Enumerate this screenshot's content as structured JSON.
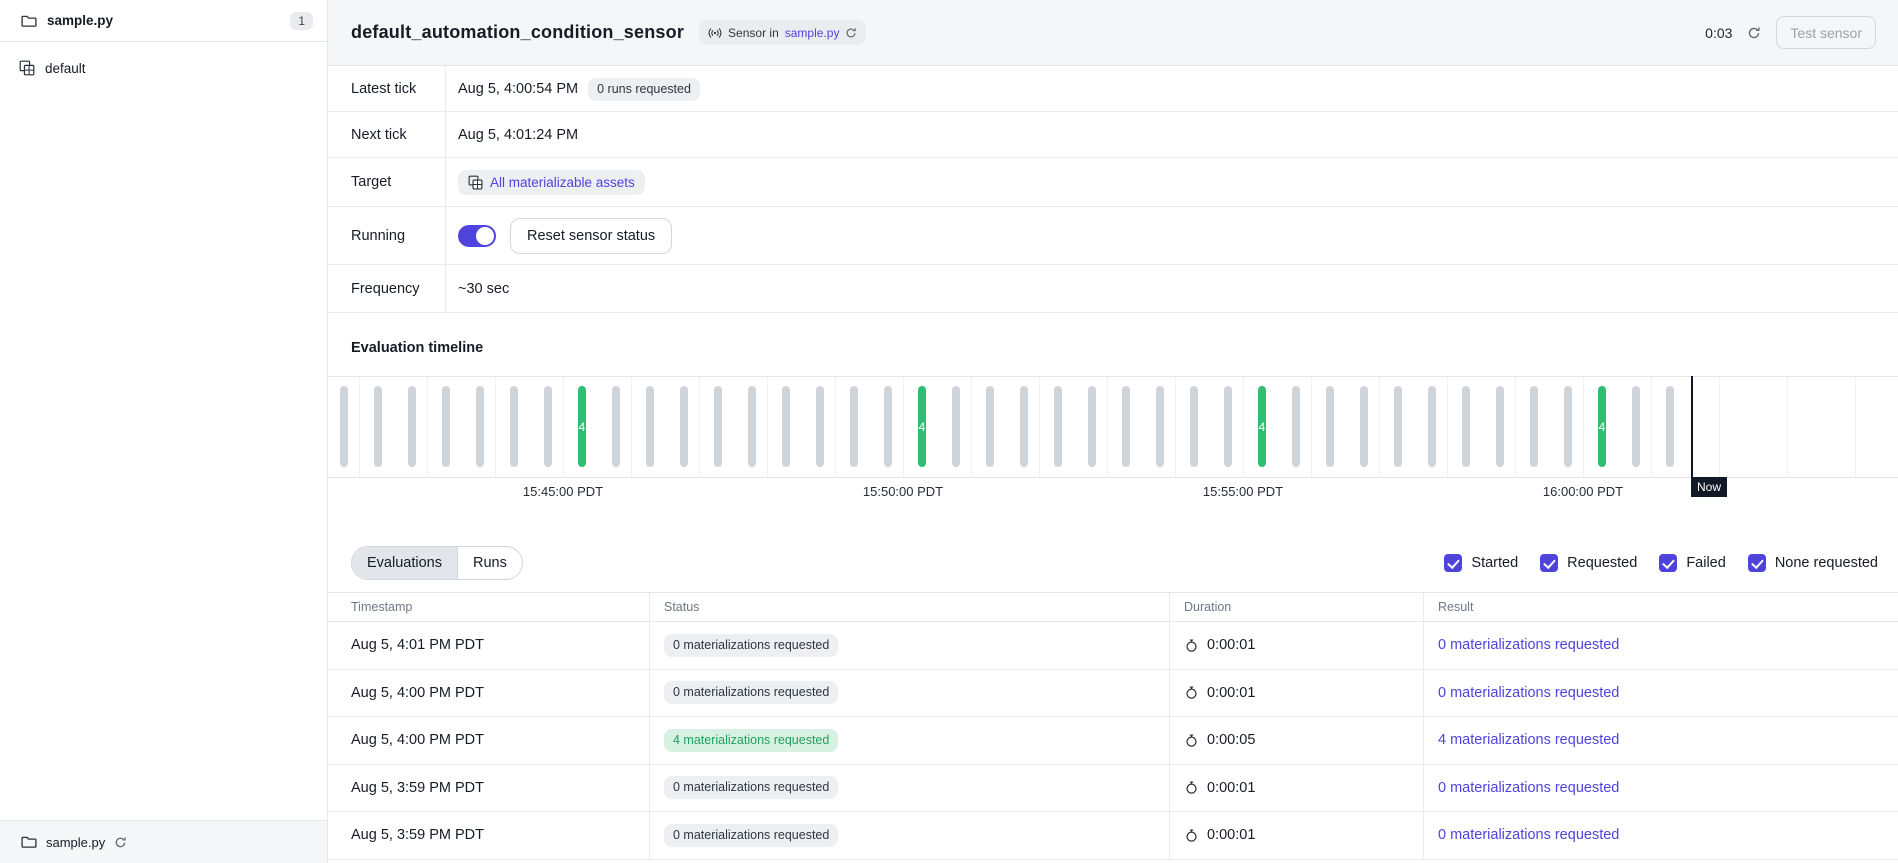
{
  "colors": {
    "accent": "#4F43DD",
    "green_bar": "#2FBE71",
    "green_badge_bg": "#D7F2E2",
    "green_badge_text": "#1FA15D",
    "header_bg": "#F5F6F8"
  },
  "sidebar": {
    "top_item": {
      "label": "sample.py",
      "count": "1"
    },
    "group_item": {
      "label": "default"
    },
    "footer": {
      "label": "sample.py"
    }
  },
  "header": {
    "title": "default_automation_condition_sensor",
    "type_badge": {
      "prefix": "Sensor in",
      "link": "sample.py"
    },
    "refresh_countdown": "0:03",
    "test_button_label": "Test sensor"
  },
  "details": {
    "latest_tick": {
      "label": "Latest tick",
      "value": "Aug 5, 4:00:54 PM",
      "badge": "0 runs requested"
    },
    "next_tick": {
      "label": "Next tick",
      "value": "Aug 5, 4:01:24 PM"
    },
    "target": {
      "label": "Target",
      "value": "All materializable assets"
    },
    "running": {
      "label": "Running",
      "toggle_on": true,
      "button_label": "Reset sensor status"
    },
    "frequency": {
      "label": "Frequency",
      "value": "~30 sec"
    }
  },
  "timeline": {
    "title": "Evaluation timeline",
    "now_label": "Now",
    "chart_data": {
      "type": "tick-timeline",
      "tick_count": 40,
      "tick_interval": "30 sec",
      "axis_labels": [
        "15:45:00 PDT",
        "15:50:00 PDT",
        "15:55:00 PDT",
        "16:00:00 PDT"
      ],
      "success_ticks": {
        "indices": [
          7,
          17,
          27,
          37
        ],
        "value": "4"
      }
    }
  },
  "tabs": [
    {
      "label": "Evaluations",
      "active": true
    },
    {
      "label": "Runs",
      "active": false
    }
  ],
  "filters": [
    {
      "label": "Started",
      "checked": true
    },
    {
      "label": "Requested",
      "checked": true
    },
    {
      "label": "Failed",
      "checked": true
    },
    {
      "label": "None requested",
      "checked": true
    }
  ],
  "table": {
    "columns": [
      "Timestamp",
      "Status",
      "Duration",
      "Result"
    ],
    "rows": [
      {
        "timestamp": "Aug 5, 4:01 PM PDT",
        "status": "0 materializations requested",
        "status_kind": "neutral",
        "duration": "0:00:01",
        "result": "0 materializations requested"
      },
      {
        "timestamp": "Aug 5, 4:00 PM PDT",
        "status": "0 materializations requested",
        "status_kind": "neutral",
        "duration": "0:00:01",
        "result": "0 materializations requested"
      },
      {
        "timestamp": "Aug 5, 4:00 PM PDT",
        "status": "4 materializations requested",
        "status_kind": "success",
        "duration": "0:00:05",
        "result": "4 materializations requested"
      },
      {
        "timestamp": "Aug 5, 3:59 PM PDT",
        "status": "0 materializations requested",
        "status_kind": "neutral",
        "duration": "0:00:01",
        "result": "0 materializations requested"
      },
      {
        "timestamp": "Aug 5, 3:59 PM PDT",
        "status": "0 materializations requested",
        "status_kind": "neutral",
        "duration": "0:00:01",
        "result": "0 materializations requested"
      }
    ]
  }
}
